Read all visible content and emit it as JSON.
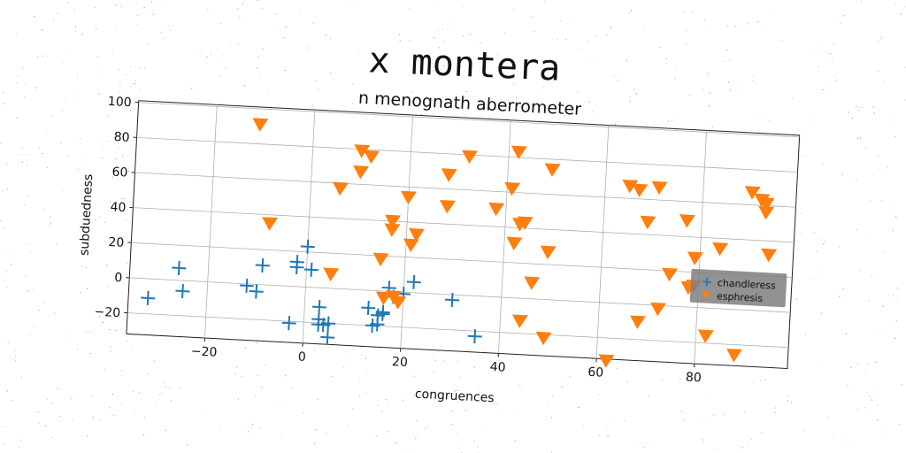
{
  "figure": {
    "suptitle": "x montera"
  },
  "colors": {
    "series1": "#1f77b4",
    "series2": "#ff7f0e",
    "grid": "#b0b0b0",
    "legend_bg": "#808080"
  },
  "chart_data": {
    "type": "scatter",
    "title": "n menognath aberrometer",
    "xlabel": "congruences",
    "ylabel": "subduedness",
    "xlim": [
      -36,
      99
    ],
    "ylim": [
      -32,
      101
    ],
    "xticks": [
      -20,
      0,
      20,
      40,
      60,
      80
    ],
    "yticks": [
      -20,
      0,
      20,
      40,
      60,
      80,
      100
    ],
    "xtick_labels": [
      "−20",
      "0",
      "20",
      "40",
      "60",
      "80"
    ],
    "ytick_labels": [
      "−20",
      "0",
      "20",
      "40",
      "60",
      "80",
      "100"
    ],
    "grid": true,
    "rotation_deg": 3,
    "legend": {
      "position": "center-right",
      "entries": [
        "chandleress",
        "esphresis"
      ]
    },
    "series": [
      {
        "name": "chandleress",
        "marker": "plus",
        "color": "#1f77b4",
        "points": [
          [
            -32,
            -11
          ],
          [
            -26,
            7
          ],
          [
            -25,
            -6
          ],
          [
            -12,
            -1
          ],
          [
            -10,
            -4
          ],
          [
            -9,
            11
          ],
          [
            -2,
            11
          ],
          [
            -2,
            14
          ],
          [
            0,
            23
          ],
          [
            -3,
            -21
          ],
          [
            1,
            10
          ],
          [
            3,
            -11
          ],
          [
            3,
            -18
          ],
          [
            3,
            -21
          ],
          [
            4,
            -21
          ],
          [
            5,
            -28
          ],
          [
            5,
            -20
          ],
          [
            13,
            -10
          ],
          [
            15,
            -19
          ],
          [
            16,
            -13
          ],
          [
            16,
            -12
          ],
          [
            17,
            2
          ],
          [
            18,
            -3
          ],
          [
            20,
            -1
          ],
          [
            22,
            6
          ],
          [
            30,
            -3
          ],
          [
            35,
            -23
          ],
          [
            14,
            -20
          ],
          [
            15,
            -14
          ]
        ]
      },
      {
        "name": "esphresis",
        "marker": "triangle_down",
        "color": "#ff7f0e",
        "points": [
          [
            -11,
            91
          ],
          [
            -8,
            35
          ],
          [
            5,
            8
          ],
          [
            6,
            57
          ],
          [
            10,
            79
          ],
          [
            10,
            67
          ],
          [
            12,
            76
          ],
          [
            15,
            18
          ],
          [
            16,
            -4
          ],
          [
            17,
            40
          ],
          [
            17,
            35
          ],
          [
            18,
            -3
          ],
          [
            19,
            -6
          ],
          [
            20,
            54
          ],
          [
            21,
            27
          ],
          [
            22,
            33
          ],
          [
            28,
            50
          ],
          [
            28,
            68
          ],
          [
            32,
            79
          ],
          [
            38,
            50
          ],
          [
            41,
            62
          ],
          [
            42,
            83
          ],
          [
            42,
            31
          ],
          [
            43,
            42
          ],
          [
            44,
            43
          ],
          [
            44,
            -13
          ],
          [
            46,
            9
          ],
          [
            49,
            74
          ],
          [
            49,
            27
          ],
          [
            49,
            -22
          ],
          [
            62,
            -33
          ],
          [
            65,
            67
          ],
          [
            67,
            65
          ],
          [
            68,
            -10
          ],
          [
            69,
            47
          ],
          [
            71,
            67
          ],
          [
            72,
            -2
          ],
          [
            74,
            18
          ],
          [
            77,
            49
          ],
          [
            78,
            11
          ],
          [
            79,
            28
          ],
          [
            82,
            -16
          ],
          [
            84,
            34
          ],
          [
            88,
            -26
          ],
          [
            90,
            67
          ],
          [
            92,
            63
          ],
          [
            93,
            61
          ],
          [
            93,
            56
          ],
          [
            94,
            32
          ],
          [
            79,
            12
          ]
        ]
      }
    ]
  }
}
